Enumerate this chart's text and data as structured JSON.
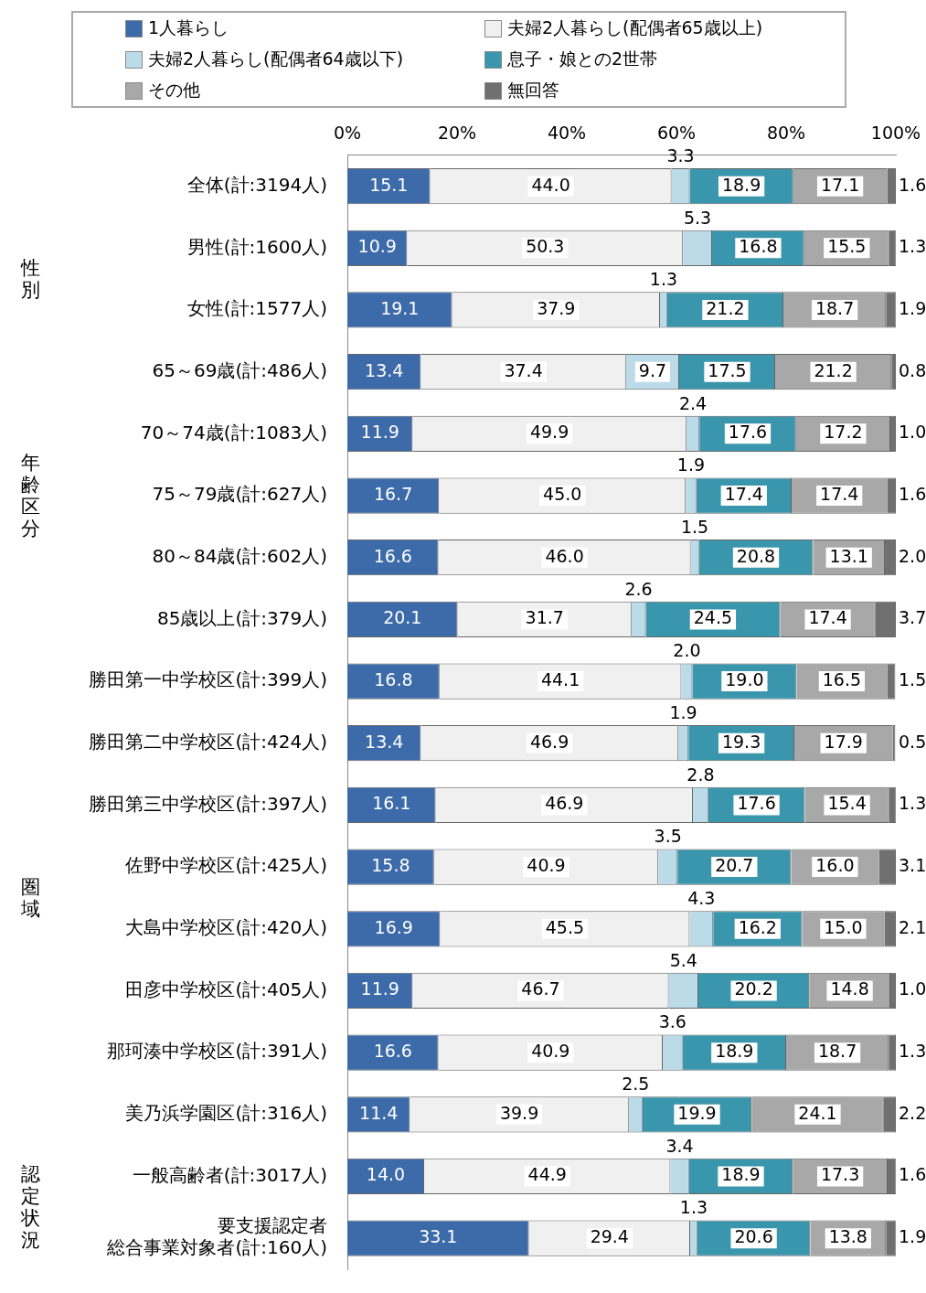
{
  "chart_data": {
    "type": "bar",
    "orientation": "horizontal",
    "stacked": true,
    "legend": "top",
    "grid": false,
    "categories": [
      "全体(計:3194人)",
      "男性(計:1600人)",
      "女性(計:1577人)",
      "65～69歳(計:486人)",
      "70～74歳(計:1083人)",
      "75～79歳(計:627人)",
      "80～84歳(計:602人)",
      "85歳以上(計:379人)",
      "勝田第一中学校区(計:399人)",
      "勝田第二中学校区(計:424人)",
      "勝田第三中学校区(計:397人)",
      "佐野中学校区(計:425人)",
      "大島中学校区(計:420人)",
      "田彦中学校区(計:405人)",
      "那珂湊中学校区(計:391人)",
      "美乃浜学園区(計:316人)",
      "一般高齢者(計:3017人)",
      "要支援認定者総合事業対象者(計:160人)"
    ],
    "series": [
      {
        "name": "1人暮らし",
        "color": "#3d6aa8",
        "values": [
          15.1,
          10.9,
          19.1,
          13.4,
          11.9,
          16.7,
          16.6,
          20.1,
          16.8,
          13.4,
          16.1,
          15.8,
          16.9,
          11.9,
          16.6,
          11.4,
          14.0,
          33.1
        ],
        "value_labels": [
          "15.1",
          "10.9",
          "19.1",
          "13.4",
          "11.9",
          "16.7",
          "16.6",
          "20.1",
          "16.8",
          "13.4",
          "16.1",
          "15.8",
          "16.9",
          "11.9",
          "16.6",
          "11.4",
          "14.0",
          "33.1"
        ]
      },
      {
        "name": "夫婦2人暮らし(配偶者65歳以上)",
        "color": "#f0f0f0",
        "values": [
          44.0,
          50.3,
          37.9,
          37.4,
          49.9,
          45.0,
          46.0,
          31.7,
          44.1,
          46.9,
          46.9,
          40.9,
          45.5,
          46.7,
          40.9,
          39.9,
          44.9,
          29.4
        ],
        "value_labels": [
          "44.0",
          "50.3",
          "37.9",
          "37.4",
          "49.9",
          "45.0",
          "46.0",
          "31.7",
          "44.1",
          "46.9",
          "46.9",
          "40.9",
          "45.5",
          "46.7",
          "40.9",
          "39.9",
          "44.9",
          "29.4"
        ]
      },
      {
        "name": "夫婦2人暮らし(配偶者64歳以下)",
        "color": "#bcdbe8",
        "values": [
          3.3,
          5.3,
          1.3,
          9.7,
          2.4,
          1.9,
          1.5,
          2.6,
          2.0,
          1.9,
          2.8,
          3.5,
          4.3,
          5.4,
          3.6,
          2.5,
          3.4,
          1.3
        ],
        "value_labels": [
          "3.3",
          "5.3",
          "1.3",
          "9.7",
          "2.4",
          "1.9",
          "1.5",
          "2.6",
          "2.0",
          "1.9",
          "2.8",
          "3.5",
          "4.3",
          "5.4",
          "3.6",
          "2.5",
          "3.4",
          "1.3"
        ]
      },
      {
        "name": "息子・娘との2世帯",
        "color": "#3a96ad",
        "values": [
          18.9,
          16.8,
          21.2,
          17.5,
          17.6,
          17.4,
          20.8,
          24.5,
          19.0,
          19.3,
          17.6,
          20.7,
          16.2,
          20.2,
          18.9,
          19.9,
          18.9,
          20.6
        ],
        "value_labels": [
          "18.9",
          "16.8",
          "21.2",
          "17.5",
          "17.6",
          "17.4",
          "20.8",
          "24.5",
          "19.0",
          "19.3",
          "17.6",
          "20.7",
          "16.2",
          "20.2",
          "18.9",
          "19.9",
          "18.9",
          "20.6"
        ]
      },
      {
        "name": "その他",
        "color": "#a8a8a8",
        "values": [
          17.1,
          15.5,
          18.7,
          21.2,
          17.2,
          17.4,
          13.1,
          17.4,
          16.5,
          17.9,
          15.4,
          16.0,
          15.0,
          14.8,
          18.7,
          24.1,
          17.3,
          13.8
        ],
        "value_labels": [
          "17.1",
          "15.5",
          "18.7",
          "21.2",
          "17.2",
          "17.4",
          "13.1",
          "17.4",
          "16.5",
          "17.9",
          "15.4",
          "16.0",
          "15.0",
          "14.8",
          "18.7",
          "24.1",
          "17.3",
          "13.8"
        ]
      },
      {
        "name": "無回答",
        "color": "#707070",
        "values": [
          1.6,
          1.3,
          1.9,
          0.8,
          1.0,
          1.6,
          2.0,
          3.7,
          1.5,
          0.5,
          1.3,
          3.1,
          2.1,
          1.0,
          1.3,
          2.2,
          1.6,
          1.9
        ],
        "value_labels": [
          "1.6",
          "1.3",
          "1.9",
          "0.8",
          "1.0",
          "1.6",
          "2.0",
          "3.7",
          "1.5",
          "0.5",
          "1.3",
          "3.1",
          "2.1",
          "1.0",
          "1.3",
          "2.2",
          "1.6",
          "1.9"
        ]
      }
    ],
    "xlim": [
      0,
      100
    ],
    "xticks": [
      {
        "value": 0,
        "label": "0%"
      },
      {
        "value": 20,
        "label": "20%"
      },
      {
        "value": 40,
        "label": "40%"
      },
      {
        "value": 60,
        "label": "60%"
      },
      {
        "value": 80,
        "label": "80%"
      },
      {
        "value": 100,
        "label": "100%"
      }
    ],
    "annotations": [
      "性別",
      "年齢区分",
      "圏域",
      "認定状況"
    ]
  }
}
